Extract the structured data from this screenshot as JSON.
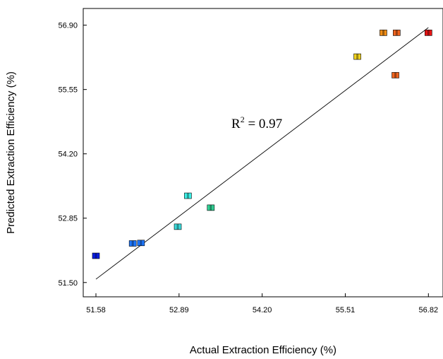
{
  "chart_data": {
    "type": "scatter",
    "title": "",
    "xlabel": "Actual Extraction Efficiency (%)",
    "ylabel": "Predicted Extraction Efficiency (%)",
    "xlim": [
      51.38,
      57.05
    ],
    "ylim": [
      51.2,
      57.25
    ],
    "x_ticks": [
      "51.58",
      "52.89",
      "54.20",
      "55.51",
      "56.82"
    ],
    "y_ticks": [
      "51.50",
      "52.85",
      "54.20",
      "55.55",
      "56.90"
    ],
    "annotation": {
      "base": "R",
      "sup": "2",
      "rest": " = 0.97"
    },
    "fit_line": {
      "x": [
        51.58,
        56.82
      ],
      "y": [
        51.57,
        56.85
      ]
    },
    "grid": false,
    "legend": "none",
    "points": [
      {
        "x": 51.58,
        "y": 52.06,
        "color": "#0a1ee6"
      },
      {
        "x": 52.16,
        "y": 52.32,
        "color": "#1e78ff"
      },
      {
        "x": 52.29,
        "y": 52.33,
        "color": "#1e78ff"
      },
      {
        "x": 52.87,
        "y": 52.67,
        "color": "#3cdcdc"
      },
      {
        "x": 53.03,
        "y": 53.32,
        "color": "#3cf0e6"
      },
      {
        "x": 53.39,
        "y": 53.07,
        "color": "#32d296"
      },
      {
        "x": 55.7,
        "y": 56.24,
        "color": "#f0d21e"
      },
      {
        "x": 56.11,
        "y": 56.74,
        "color": "#f08c14"
      },
      {
        "x": 56.32,
        "y": 56.74,
        "color": "#f0641e"
      },
      {
        "x": 56.3,
        "y": 55.85,
        "color": "#f0641e"
      },
      {
        "x": 56.82,
        "y": 56.74,
        "color": "#e61414"
      }
    ]
  }
}
